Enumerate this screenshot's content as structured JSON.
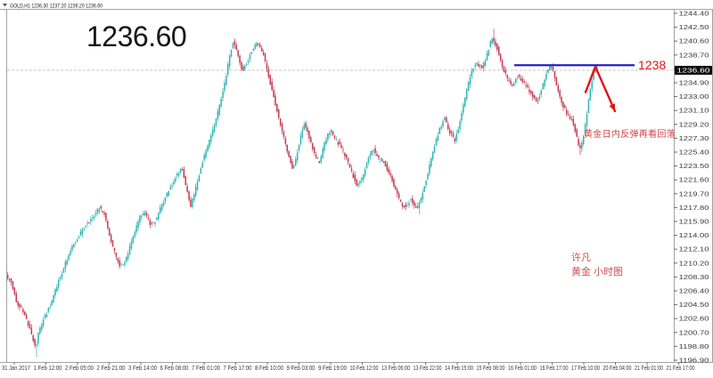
{
  "window": {
    "dropdown_icon": "▼",
    "symbol_ohlc": "GOLD,H1  1236.30 1237.20 1236.20 1236.60",
    "watermark_price": "1236.60"
  },
  "colors": {
    "bull": "#2fb4b4",
    "bear": "#c13a52",
    "support_line": "#1515c8",
    "arrow_red": "#e01515",
    "frame": "#a3a3a3",
    "axis_text": "#3a3a3a",
    "price_tag_bg": "#0d0d0d",
    "price_tag_text": "#ffffff",
    "bid_line": "#c4c4c4",
    "background": "#ffffff"
  },
  "annotations": {
    "level_label": "1238",
    "level_price": 1237.3,
    "level_x_start": 577,
    "level_x_end": 712,
    "arrow_points": [
      [
        657,
        1233.6
      ],
      [
        668,
        1237.1
      ],
      [
        690,
        1231.0
      ]
    ],
    "note": "黄金日内反弹再看回落",
    "signature_line1": "许凡",
    "signature_line2": "黄金 小时图"
  },
  "price_axis": {
    "current_price": 1236.6,
    "current_price_label": "1236.60",
    "top_label_price": 1244.4,
    "step": 1.9,
    "labels": [
      "1244.40",
      "1242.50",
      "1240.60",
      "1238.70",
      "1236.80",
      "1234.90",
      "1233.00",
      "1231.10",
      "1229.20",
      "1227.30",
      "1225.40",
      "1223.50",
      "1221.60",
      "1219.70",
      "1217.80",
      "1215.90",
      "1214.00",
      "1212.10",
      "1210.20",
      "1208.30",
      "1206.40",
      "1204.50",
      "1202.60",
      "1200.70",
      "1198.80",
      "1196.90"
    ]
  },
  "time_axis": {
    "labels": [
      "31 Jan 2017",
      "1 Feb 12:00",
      "2 Feb 05:00",
      "2 Feb 21:00",
      "3 Feb 14:00",
      "6 Feb 08:00",
      "7 Feb 01:00",
      "7 Feb 17:00",
      "8 Feb 10:00",
      "9 Feb 03:00",
      "9 Feb 19:00",
      "10 Feb 12:00",
      "13 Feb 06:00",
      "13 Feb 22:00",
      "14 Feb 15:00",
      "15 Feb 08:00",
      "16 Feb 01:00",
      "16 Feb 17:00",
      "17 Feb 10:00",
      "20 Feb 04:00",
      "21 Feb 01:00",
      "21 Feb 17:00"
    ]
  },
  "chart_data": {
    "type": "candlestick",
    "symbol": "GOLD",
    "timeframe": "H1",
    "ohlc": {
      "open": 1236.3,
      "high": 1237.2,
      "low": 1236.2,
      "close": 1236.6
    },
    "ylim": [
      1196.9,
      1244.4
    ],
    "x_range": [
      "31 Jan 2017",
      "21 Feb 2017 17:00"
    ],
    "grid": false,
    "legend": "none",
    "path_waypoints": [
      [
        8,
        1208.5
      ],
      [
        14,
        1207.5
      ],
      [
        20,
        1204.8
      ],
      [
        26,
        1204.0
      ],
      [
        32,
        1202.0
      ],
      [
        38,
        1200.0
      ],
      [
        41,
        1198.3
      ],
      [
        44,
        1200.5
      ],
      [
        50,
        1202.5
      ],
      [
        58,
        1204.5
      ],
      [
        66,
        1207.5
      ],
      [
        74,
        1210.0
      ],
      [
        82,
        1212.5
      ],
      [
        90,
        1214.0
      ],
      [
        98,
        1215.5
      ],
      [
        106,
        1216.5
      ],
      [
        112,
        1217.8
      ],
      [
        118,
        1217.0
      ],
      [
        124,
        1214.0
      ],
      [
        130,
        1211.5
      ],
      [
        136,
        1209.8
      ],
      [
        142,
        1210.5
      ],
      [
        150,
        1213.5
      ],
      [
        158,
        1216.5
      ],
      [
        164,
        1217.0
      ],
      [
        170,
        1215.5
      ],
      [
        176,
        1216.0
      ],
      [
        182,
        1218.0
      ],
      [
        190,
        1220.0
      ],
      [
        198,
        1222.0
      ],
      [
        205,
        1223.2
      ],
      [
        210,
        1220.5
      ],
      [
        215,
        1218.0
      ],
      [
        220,
        1220.0
      ],
      [
        228,
        1224.0
      ],
      [
        236,
        1227.0
      ],
      [
        244,
        1230.0
      ],
      [
        252,
        1234.0
      ],
      [
        258,
        1238.0
      ],
      [
        263,
        1240.8
      ],
      [
        268,
        1238.5
      ],
      [
        273,
        1236.5
      ],
      [
        278,
        1237.5
      ],
      [
        284,
        1239.5
      ],
      [
        290,
        1240.3
      ],
      [
        296,
        1239.0
      ],
      [
        302,
        1236.0
      ],
      [
        310,
        1232.0
      ],
      [
        318,
        1228.0
      ],
      [
        326,
        1224.5
      ],
      [
        330,
        1223.0
      ],
      [
        336,
        1226.0
      ],
      [
        342,
        1229.5
      ],
      [
        348,
        1227.5
      ],
      [
        354,
        1225.0
      ],
      [
        360,
        1224.0
      ],
      [
        366,
        1227.0
      ],
      [
        372,
        1228.5
      ],
      [
        378,
        1227.0
      ],
      [
        384,
        1226.0
      ],
      [
        390,
        1224.5
      ],
      [
        396,
        1222.5
      ],
      [
        402,
        1220.8
      ],
      [
        408,
        1222.0
      ],
      [
        414,
        1224.5
      ],
      [
        420,
        1225.8
      ],
      [
        426,
        1224.5
      ],
      [
        432,
        1224.0
      ],
      [
        438,
        1222.5
      ],
      [
        444,
        1220.5
      ],
      [
        450,
        1218.5
      ],
      [
        456,
        1217.8
      ],
      [
        462,
        1219.0
      ],
      [
        468,
        1217.5
      ],
      [
        472,
        1218.5
      ],
      [
        478,
        1221.0
      ],
      [
        486,
        1225.0
      ],
      [
        494,
        1228.5
      ],
      [
        500,
        1230.0
      ],
      [
        506,
        1228.0
      ],
      [
        512,
        1227.0
      ],
      [
        518,
        1230.0
      ],
      [
        524,
        1233.5
      ],
      [
        530,
        1236.5
      ],
      [
        536,
        1237.5
      ],
      [
        542,
        1236.8
      ],
      [
        548,
        1239.0
      ],
      [
        553,
        1241.0
      ],
      [
        558,
        1240.0
      ],
      [
        564,
        1237.5
      ],
      [
        570,
        1235.5
      ],
      [
        576,
        1234.5
      ],
      [
        582,
        1236.0
      ],
      [
        588,
        1235.0
      ],
      [
        594,
        1234.0
      ],
      [
        600,
        1232.8
      ],
      [
        604,
        1232.3
      ],
      [
        610,
        1234.5
      ],
      [
        616,
        1236.8
      ],
      [
        620,
        1237.3
      ],
      [
        626,
        1234.5
      ],
      [
        632,
        1232.0
      ],
      [
        638,
        1230.5
      ],
      [
        644,
        1229.5
      ],
      [
        648,
        1227.5
      ],
      [
        652,
        1225.8
      ],
      [
        656,
        1227.5
      ],
      [
        660,
        1231.0
      ],
      [
        664,
        1234.5
      ],
      [
        668,
        1236.8
      ],
      [
        670,
        1236.6
      ]
    ],
    "wick_spikes": [
      {
        "x": 41,
        "price": 1197.3
      },
      {
        "x": 470,
        "price": 1216.9
      },
      {
        "x": 553,
        "price": 1242.3
      },
      {
        "x": 651,
        "price": 1225.0
      }
    ],
    "candle_start_x": 8,
    "candle_end_x": 670,
    "candle_step": 1.9
  }
}
